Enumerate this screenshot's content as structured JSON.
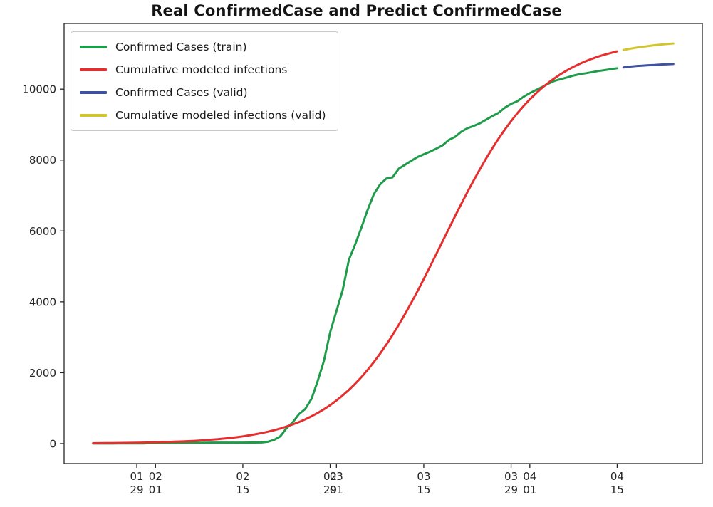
{
  "figure": {
    "background": "#ffffff",
    "spine_color": "#262626",
    "text_color": "#262626"
  },
  "chart_data": {
    "type": "line",
    "title": "Real ConfirmedCase and Predict ConfirmedCase",
    "xlabel": "",
    "ylabel": "",
    "grid": false,
    "legend_position": "upper left",
    "xlim": [
      -4.65,
      97.65
    ],
    "ylim": [
      -563,
      11852
    ],
    "y_ticks": [
      0,
      2000,
      4000,
      6000,
      8000,
      10000
    ],
    "x_ticks": [
      {
        "day": 7,
        "month": "01",
        "date": "29"
      },
      {
        "day": 10,
        "month": "02",
        "date": "01"
      },
      {
        "day": 24,
        "month": "02",
        "date": "15"
      },
      {
        "day": 38,
        "month": "02",
        "date": "29"
      },
      {
        "day": 39,
        "month": "03",
        "date": "01"
      },
      {
        "day": 53,
        "month": "03",
        "date": "15"
      },
      {
        "day": 67,
        "month": "03",
        "date": "29"
      },
      {
        "day": 70,
        "month": "04",
        "date": "01"
      },
      {
        "day": 84,
        "month": "04",
        "date": "15"
      }
    ],
    "series": [
      {
        "name": "Confirmed Cases (train)",
        "color": "#1e9c4a",
        "line_width": 3,
        "start_day": 0,
        "values": [
          1,
          1,
          2,
          2,
          3,
          4,
          4,
          4,
          6,
          11,
          12,
          15,
          15,
          16,
          19,
          23,
          24,
          24,
          25,
          27,
          28,
          28,
          28,
          28,
          28,
          29,
          30,
          31,
          51,
          104,
          204,
          433,
          602,
          833,
          977,
          1261,
          1766,
          2337,
          3150,
          3736,
          4335,
          5186,
          5621,
          6088,
          6593,
          7041,
          7313,
          7478,
          7513,
          7755,
          7869,
          7979,
          8086,
          8162,
          8236,
          8320,
          8413,
          8565,
          8652,
          8799,
          8897,
          8961,
          9037,
          9137,
          9241,
          9332,
          9478,
          9583,
          9661,
          9786,
          9887,
          9976,
          10062,
          10156,
          10237,
          10284,
          10331,
          10384,
          10423,
          10450,
          10480,
          10512,
          10537,
          10564,
          10591
        ]
      },
      {
        "name": "Cumulative modeled infections",
        "color": "#e62e2e",
        "line_width": 3,
        "start_day": 0,
        "values": [
          10,
          12,
          13,
          15,
          17,
          19,
          22,
          25,
          28,
          32,
          36,
          41,
          46,
          53,
          60,
          67,
          76,
          86,
          98,
          111,
          125,
          142,
          160,
          181,
          205,
          232,
          262,
          296,
          334,
          377,
          425,
          480,
          541,
          609,
          685,
          770,
          865,
          970,
          1087,
          1216,
          1359,
          1516,
          1688,
          1875,
          2080,
          2301,
          2539,
          2794,
          3066,
          3354,
          3658,
          3974,
          4303,
          4643,
          4991,
          5344,
          5700,
          6056,
          6409,
          6757,
          7096,
          7425,
          7742,
          8046,
          8334,
          8606,
          8861,
          9100,
          9321,
          9525,
          9712,
          9884,
          10041,
          10184,
          10313,
          10430,
          10535,
          10630,
          10715,
          10791,
          10859,
          10921,
          10974,
          11023,
          11066
        ]
      },
      {
        "name": "Confirmed Cases (valid)",
        "color": "#3f51a3",
        "line_width": 3,
        "start_day": 85,
        "values": [
          10613,
          10635,
          10653,
          10661,
          10674,
          10683,
          10694,
          10702,
          10708
        ]
      },
      {
        "name": "Cumulative modeled infections (valid)",
        "color": "#d2c62b",
        "line_width": 3,
        "start_day": 85,
        "values": [
          11105,
          11138,
          11168,
          11194,
          11218,
          11239,
          11257,
          11274,
          11288
        ]
      }
    ]
  }
}
